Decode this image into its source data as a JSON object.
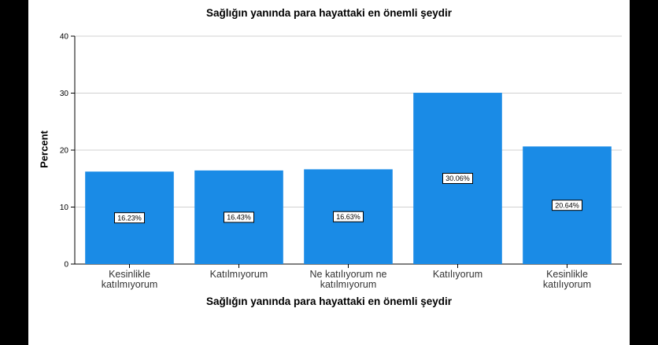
{
  "chart_data": {
    "type": "bar",
    "title": "Sağlığın yanında para hayattaki en önemli şeydir",
    "xlabel": "Sağlığın yanında para hayattaki en önemli şeydir",
    "ylabel": "Percent",
    "ylim": [
      0,
      40
    ],
    "yticks": [
      "0",
      "10",
      "20",
      "30",
      "40"
    ],
    "grid": true,
    "categories": [
      [
        "Kesinlikle",
        "katılmıyorum"
      ],
      [
        "Katılmıyorum"
      ],
      [
        "Ne katılıyorum ne",
        "katılmıyorum"
      ],
      [
        "Katılıyorum"
      ],
      [
        "Kesinlikle",
        "katılıyorum"
      ]
    ],
    "values": [
      16.23,
      16.43,
      16.63,
      30.06,
      20.64
    ],
    "data_labels": [
      "16.23%",
      "16.43%",
      "16.63%",
      "30.06%",
      "20.64%"
    ],
    "bar_color": "#1a8be6"
  }
}
